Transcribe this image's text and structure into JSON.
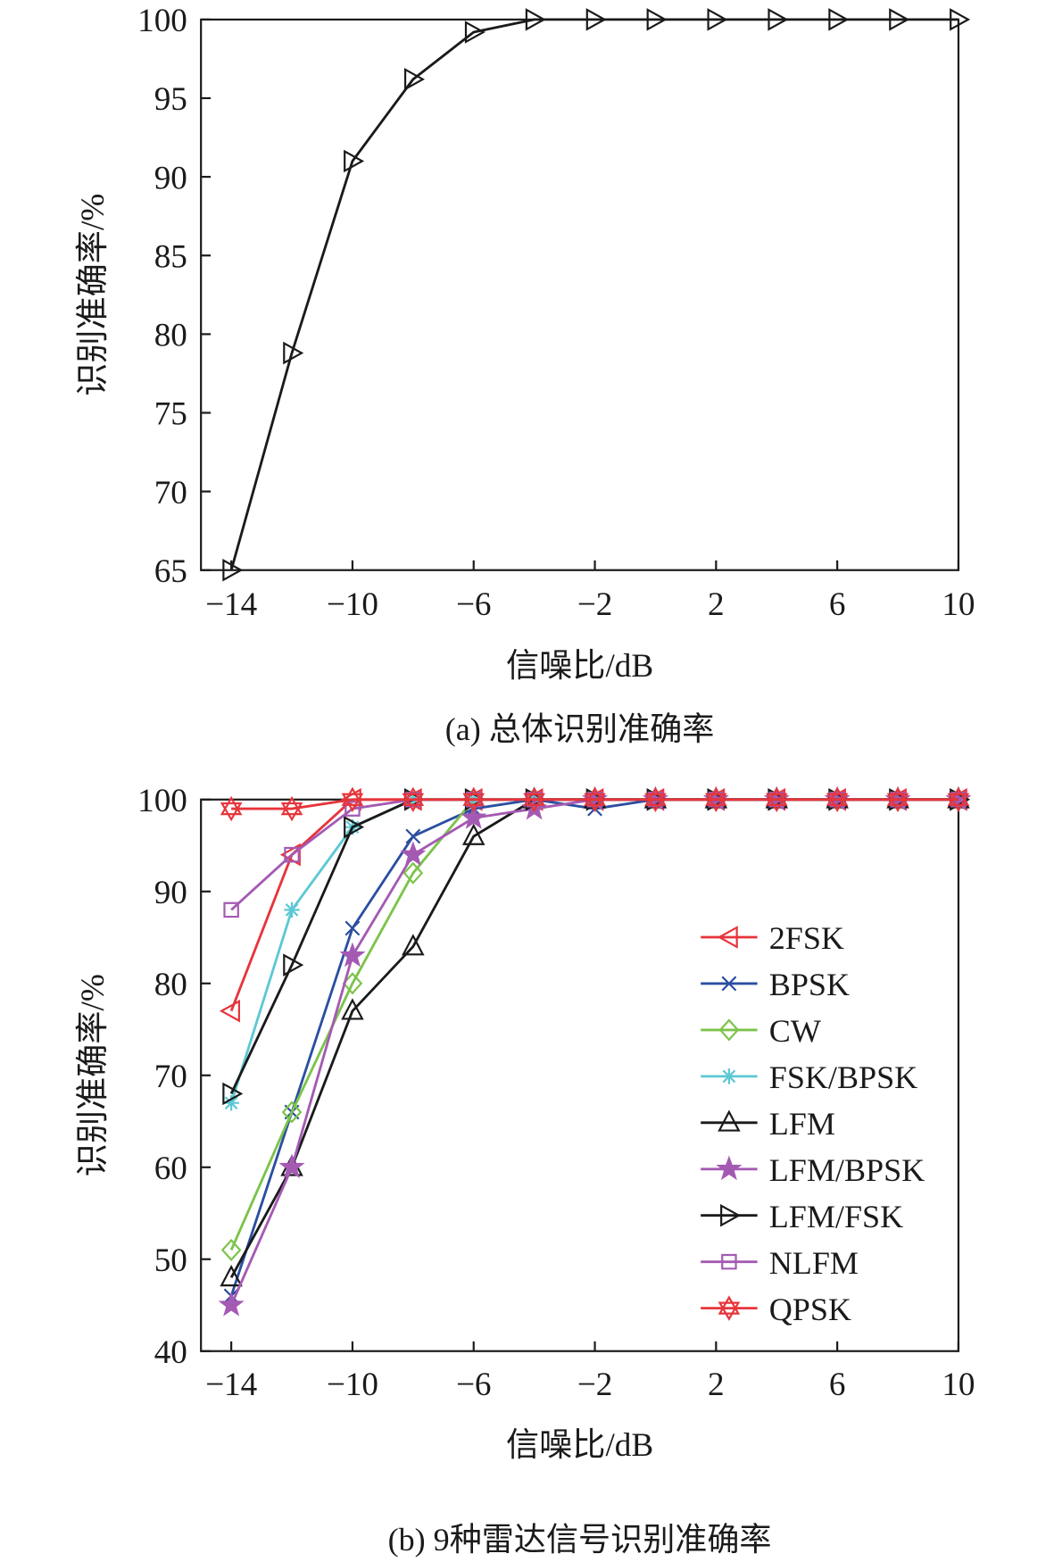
{
  "chart_data": [
    {
      "type": "line",
      "caption": "(a) 总体识别准确率",
      "xlabel": "信噪比/dB",
      "ylabel": "识别准确率/%",
      "xlim": [
        -15,
        10
      ],
      "ylim": [
        65,
        100
      ],
      "xticks": [
        -14,
        -10,
        -6,
        -2,
        2,
        6,
        10
      ],
      "xtick_labels": [
        "−14",
        "−10",
        "−6",
        "−2",
        "2",
        "6",
        "10"
      ],
      "yticks": [
        65,
        70,
        75,
        80,
        85,
        90,
        95,
        100
      ],
      "ytick_labels": [
        "65",
        "70",
        "75",
        "80",
        "85",
        "90",
        "95",
        "100"
      ],
      "grid": false,
      "legend": "none",
      "x": [
        -14,
        -12,
        -10,
        -8,
        -6,
        -4,
        -2,
        0,
        2,
        4,
        6,
        8,
        10
      ],
      "series": [
        {
          "values": [
            65,
            78.8,
            91,
            96.2,
            99.2,
            100,
            100,
            100,
            100,
            100,
            100,
            100,
            100
          ],
          "color": "#1a1a1a",
          "marker": "triangle-right"
        }
      ]
    },
    {
      "type": "line",
      "caption": "(b) 9种雷达信号识别准确率",
      "xlabel": "信噪比/dB",
      "ylabel": "识别准确率/%",
      "xlim": [
        -15,
        10
      ],
      "ylim": [
        40,
        100
      ],
      "xticks": [
        -14,
        -10,
        -6,
        -2,
        2,
        6,
        10
      ],
      "xtick_labels": [
        "−14",
        "−10",
        "−6",
        "−2",
        "2",
        "6",
        "10"
      ],
      "yticks": [
        40,
        50,
        60,
        70,
        80,
        90,
        100
      ],
      "ytick_labels": [
        "40",
        "50",
        "60",
        "70",
        "80",
        "90",
        "100"
      ],
      "grid": false,
      "legend": "right",
      "x": [
        -14,
        -12,
        -10,
        -8,
        -6,
        -4,
        -2,
        0,
        2,
        4,
        6,
        8,
        10
      ],
      "series": [
        {
          "name": "2FSK",
          "values": [
            77,
            94,
            100,
            100,
            100,
            100,
            100,
            100,
            100,
            100,
            100,
            100,
            100
          ],
          "color": "#e6353b",
          "marker": "triangle-left"
        },
        {
          "name": "BPSK",
          "values": [
            46,
            66,
            86,
            96,
            99,
            100,
            99,
            100,
            100,
            100,
            100,
            100,
            100
          ],
          "color": "#2b4ea0",
          "marker": "x"
        },
        {
          "name": "CW",
          "values": [
            51,
            66,
            80,
            92,
            100,
            100,
            100,
            100,
            100,
            100,
            100,
            100,
            100
          ],
          "color": "#7cc34a",
          "marker": "diamond"
        },
        {
          "name": "FSK/BPSK",
          "values": [
            67,
            88,
            97,
            100,
            100,
            100,
            100,
            100,
            100,
            100,
            100,
            100,
            100
          ],
          "color": "#5cc8d4",
          "marker": "asterisk"
        },
        {
          "name": "LFM",
          "values": [
            48,
            60,
            77,
            84,
            96,
            100,
            100,
            100,
            100,
            100,
            100,
            100,
            100
          ],
          "color": "#1a1a1a",
          "marker": "triangle-up"
        },
        {
          "name": "LFM/BPSK",
          "values": [
            45,
            60,
            83,
            94,
            98,
            99,
            100,
            100,
            100,
            100,
            100,
            100,
            100
          ],
          "color": "#a45ab3",
          "marker": "pentagram"
        },
        {
          "name": "LFM/FSK",
          "values": [
            68,
            82,
            97,
            100,
            100,
            100,
            100,
            100,
            100,
            100,
            100,
            100,
            100
          ],
          "color": "#1a1a1a",
          "marker": "triangle-right"
        },
        {
          "name": "NLFM",
          "values": [
            88,
            94,
            99,
            100,
            100,
            100,
            100,
            100,
            100,
            100,
            100,
            100,
            100
          ],
          "color": "#a45ab3",
          "marker": "square"
        },
        {
          "name": "QPSK",
          "values": [
            99,
            99,
            100,
            100,
            100,
            100,
            100,
            100,
            100,
            100,
            100,
            100,
            100
          ],
          "color": "#e6353b",
          "marker": "hexagram"
        }
      ]
    }
  ]
}
